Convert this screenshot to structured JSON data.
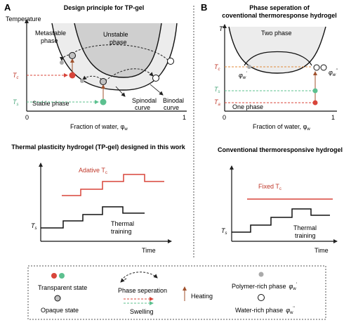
{
  "panelA": {
    "letter": "A",
    "title": "Design principle for TP-gel",
    "y_axis_label": "Temperature",
    "region_metastable_line1": "Metastable",
    "region_metastable_line2": "phase",
    "region_unstable_line1": "Unstable",
    "region_unstable_line2": "phase",
    "region_stable": "Stable phase",
    "spinodal_line1": "Spinodal",
    "spinodal_line2": "curve",
    "binodal_line1": "Binodal",
    "binodal_line2": "curve",
    "tc_label": "T",
    "tc_sub": "c",
    "ts_label": "T",
    "ts_sub": "s",
    "x_tick_0": "0",
    "x_tick_1": "1",
    "x_axis_label": "Fraction of water, φ",
    "x_axis_sub": "w",
    "bottom_title": "Thermal plasticity hydrogel (TP-gel) designed in this work",
    "adaptive_label": "Adative T",
    "adaptive_sub": "c",
    "ts_bottom": "T",
    "ts_bottom_sub": "s",
    "training_line1": "Thermal",
    "training_line2": "training",
    "time_label": "Time"
  },
  "panelB": {
    "letter": "B",
    "title_line1": "Phase seperation of",
    "title_line2": "coventional thermoresponse hydrogel",
    "y_axis_label": "T",
    "two_phase": "Two phase",
    "one_phase": "One phase",
    "tc_label": "T",
    "tc_sub": "c",
    "ts_label": "T",
    "ts_sub": "s",
    "ta_label": "T",
    "ta_sub": "a",
    "phi_w1": "φ",
    "phi_w1_sub": "w",
    "phi_w1_sup": "'",
    "phi_w2": "φ",
    "phi_w2_sub": "w",
    "phi_w2_sup": "''",
    "x_tick_0": "0",
    "x_tick_1": "1",
    "x_axis_label": "Fraction of water, φ",
    "x_axis_sub": "w",
    "bottom_title": "Conventional thermoresponsive hydrogel",
    "fixed_label": "Fixed T",
    "fixed_sub": "c",
    "ts_bottom": "T",
    "ts_bottom_sub": "s",
    "training_line1": "Thermal",
    "training_line2": "training",
    "time_label": "Time"
  },
  "legend": {
    "transparent": "Transparent state",
    "opaque": "Opaque state",
    "phase_sep": "Phase seperation",
    "swelling": "Swelling",
    "heating": "Heating",
    "polymer_rich": "Polymer-rich phase",
    "polymer_phi": "φ",
    "polymer_sub": "w",
    "polymer_sup": "'",
    "water_rich": "Water-rich phase",
    "water_phi": "φ",
    "water_sub": "w",
    "water_sup": "''"
  },
  "colors": {
    "red": "#d8453a",
    "teal": "#5cc08f",
    "grey_dark": "#cfcfcf",
    "grey_light": "#ececec",
    "opaque_fill": "#c2c2c2",
    "text_red": "#c0392b",
    "text_teal": "#48a67a"
  }
}
